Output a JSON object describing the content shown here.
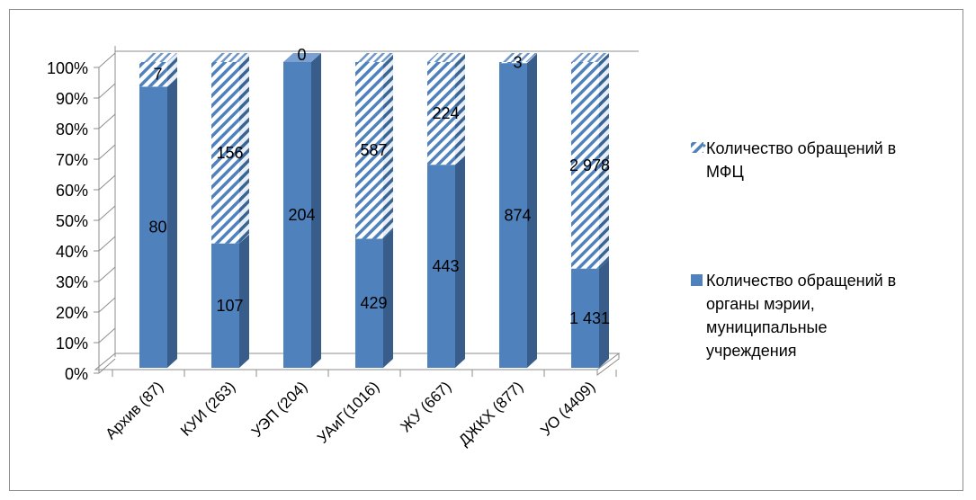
{
  "chart_data": {
    "type": "bar",
    "stacked": "percent",
    "three_d": true,
    "categories": [
      "Архив (87)",
      "КУИ (263)",
      "УЭП (204)",
      "УАиГ(1016)",
      "ЖУ (667)",
      "ДЖКХ (877)",
      "УО (4409)"
    ],
    "series": [
      {
        "name": "Количество обращений в органы мэрии, муниципальные учреждения",
        "values": [
          80,
          107,
          204,
          429,
          443,
          874,
          1431
        ],
        "labels": [
          "80",
          "107",
          "204",
          "429",
          "443",
          "874",
          "1 431"
        ],
        "color": "#4f81bd",
        "fill": "solid"
      },
      {
        "name": "Количество обращений в МФЦ",
        "values": [
          7,
          156,
          0,
          587,
          224,
          3,
          2978
        ],
        "labels": [
          "7",
          "156",
          "0",
          "587",
          "224",
          "3",
          "2 978"
        ],
        "color": "#4f81bd",
        "fill": "diagonal-hatch"
      }
    ],
    "yticks": [
      "0%",
      "10%",
      "20%",
      "30%",
      "40%",
      "50%",
      "60%",
      "70%",
      "80%",
      "90%",
      "100%"
    ],
    "ylim": [
      0,
      100
    ],
    "legend": {
      "position": "right",
      "items": [
        [
          "Количество обращений в",
          "МФЦ"
        ],
        [
          "Количество обращений в",
          "органы мэрии,",
          "муниципальные",
          "учреждения"
        ]
      ]
    },
    "grid": false
  }
}
